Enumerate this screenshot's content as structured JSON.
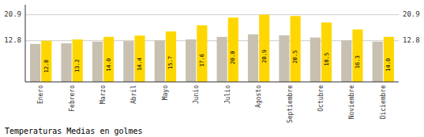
{
  "chart_data": {
    "type": "bar",
    "title": "Temperaturas Medias en golmes",
    "categories": [
      "Enero",
      "Febrero",
      "Marzo",
      "Abril",
      "Mayo",
      "Junio",
      "Julio",
      "Agosto",
      "Septiembre",
      "Octubre",
      "Noviembre",
      "Diciembre"
    ],
    "series": [
      {
        "color": "#C8C0B0",
        "values": [
          11.8,
          12.0,
          12.5,
          12.7,
          12.9,
          13.2,
          14.0,
          14.8,
          14.5,
          13.8,
          12.9,
          12.5
        ]
      },
      {
        "color": "#FFD700",
        "values": [
          12.8,
          13.2,
          14.0,
          14.4,
          15.7,
          17.6,
          20.0,
          20.9,
          20.5,
          18.5,
          16.3,
          14.0
        ],
        "value_labels": [
          "12.8",
          "13.2",
          "14.0",
          "14.4",
          "15.7",
          "17.6",
          "20.0",
          "20.9",
          "20.5",
          "18.5",
          "16.3",
          "14.0"
        ],
        "data_labels": true
      }
    ],
    "ylim": [
      0,
      24.0
    ],
    "yticks": [
      12.8,
      20.9
    ],
    "grid": true
  }
}
